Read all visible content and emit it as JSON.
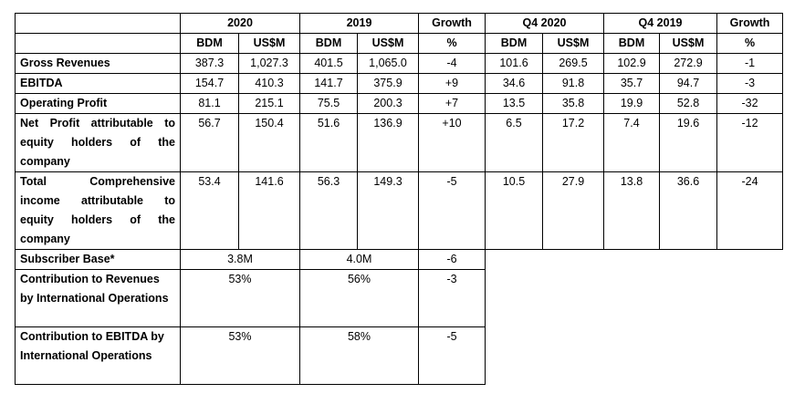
{
  "header": {
    "period_2020": "2020",
    "period_2019": "2019",
    "growth": "Growth",
    "q4_2020": "Q4 2020",
    "q4_2019": "Q4 2019",
    "growth_q4": "Growth",
    "bdm": "BDM",
    "usd": "US$M",
    "pct": "%"
  },
  "rows": [
    {
      "label": "Gross Revenues",
      "values": [
        "387.3",
        "1,027.3",
        "401.5",
        "1,065.0",
        "-4",
        "101.6",
        "269.5",
        "102.9",
        "272.9",
        "-1"
      ]
    },
    {
      "label": "EBITDA",
      "values": [
        "154.7",
        "410.3",
        "141.7",
        "375.9",
        "+9",
        "34.6",
        "91.8",
        "35.7",
        "94.7",
        "-3"
      ]
    },
    {
      "label": "Operating Profit",
      "values": [
        "81.1",
        "215.1",
        "75.5",
        "200.3",
        "+7",
        "13.5",
        "35.8",
        "19.9",
        "52.8",
        "-32"
      ]
    },
    {
      "label": "Net Profit attributable to equity holders of the company",
      "values": [
        "56.7",
        "150.4",
        "51.6",
        "136.9",
        "+10",
        "6.5",
        "17.2",
        "7.4",
        "19.6",
        "-12"
      ]
    },
    {
      "label": "Total Comprehensive income attributable to equity holders of the company",
      "values": [
        "53.4",
        "141.6",
        "56.3",
        "149.3",
        "-5",
        "10.5",
        "27.9",
        "13.8",
        "36.6",
        "-24"
      ]
    }
  ],
  "extra_rows": [
    {
      "label": "Subscriber Base*",
      "v2020": "3.8M",
      "v2019": "4.0M",
      "growth": "-6"
    },
    {
      "label": "Contribution to Revenues by International Operations",
      "v2020": "53%",
      "v2019": "56%",
      "growth": "-3"
    },
    {
      "label": "Contribution to EBITDA by International Operations",
      "v2020": "53%",
      "v2019": "58%",
      "growth": "-5"
    }
  ]
}
